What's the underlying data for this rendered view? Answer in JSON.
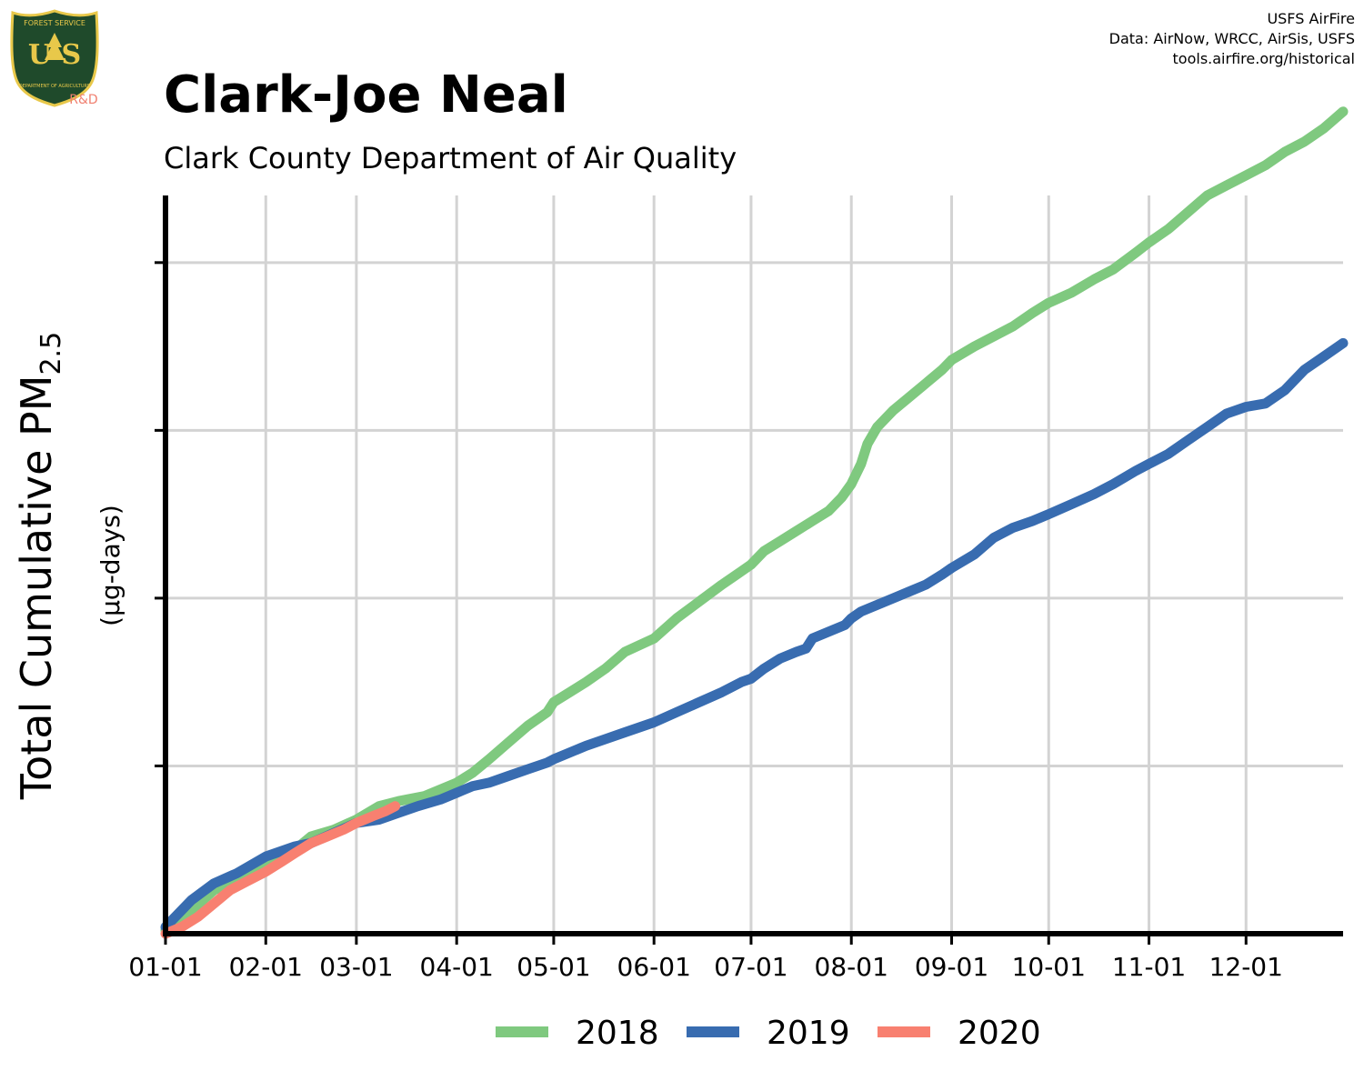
{
  "header": {
    "title": "Clark-Joe Neal",
    "subtitle": "Clark County Department of Air Quality",
    "credits": [
      "USFS AirFire",
      "Data: AirNow, WRCC, AirSis, USFS",
      "tools.airfire.org/historical"
    ]
  },
  "logo": {
    "text_top": "FOREST SERVICE",
    "text_letters": "U S",
    "text_bottom": "DEPARTMENT OF AGRICULTURE",
    "text_rd": "R&D",
    "colors": {
      "shield": "#1f4a2b",
      "gold": "#e8c84a",
      "rd": "#f08070"
    }
  },
  "chart_data": {
    "type": "line",
    "title": "Clark-Joe Neal",
    "subtitle": "Clark County Department of Air Quality",
    "ylabel_main": "Total Cumulative PM",
    "ylabel_sub": "2.5",
    "ylabel_units": "(µg-days)",
    "x_tick_labels": [
      "01-01",
      "02-01",
      "03-01",
      "04-01",
      "05-01",
      "06-01",
      "07-01",
      "08-01",
      "09-01",
      "10-01",
      "11-01",
      "12-01"
    ],
    "x_tick_days": [
      0,
      31,
      59,
      90,
      120,
      151,
      181,
      212,
      243,
      273,
      304,
      334
    ],
    "xlim": [
      0,
      364
    ],
    "ylim": [
      0,
      2200
    ],
    "y_gridlines": [
      500,
      1000,
      1500,
      2000
    ],
    "grid": true,
    "legend_position": "bottom",
    "series": [
      {
        "name": "2018",
        "color": "#7fc97f",
        "x": [
          0,
          8,
          15,
          22,
          31,
          40,
          45,
          52,
          59,
          66,
          72,
          80,
          85,
          90,
          95,
          100,
          106,
          112,
          118,
          120,
          125,
          130,
          136,
          142,
          151,
          158,
          165,
          172,
          178,
          181,
          185,
          190,
          195,
          200,
          205,
          209,
          212,
          215,
          217,
          220,
          225,
          230,
          235,
          240,
          243,
          250,
          256,
          262,
          268,
          273,
          280,
          287,
          293,
          300,
          304,
          310,
          316,
          322,
          328,
          334,
          340,
          346,
          352,
          358,
          364
        ],
        "values": [
          10,
          70,
          130,
          160,
          210,
          250,
          290,
          310,
          340,
          380,
          395,
          410,
          430,
          450,
          480,
          520,
          570,
          620,
          660,
          690,
          720,
          750,
          790,
          840,
          880,
          940,
          990,
          1040,
          1080,
          1100,
          1140,
          1170,
          1200,
          1230,
          1260,
          1300,
          1340,
          1400,
          1460,
          1510,
          1560,
          1600,
          1640,
          1680,
          1710,
          1750,
          1780,
          1810,
          1850,
          1880,
          1910,
          1950,
          1980,
          2030,
          2060,
          2100,
          2150,
          2200,
          2230,
          2260,
          2290,
          2330,
          2360,
          2400,
          2450
        ]
      },
      {
        "name": "2019",
        "color": "#386cb0",
        "x": [
          0,
          8,
          15,
          22,
          31,
          40,
          45,
          52,
          59,
          66,
          72,
          78,
          85,
          90,
          95,
          100,
          106,
          112,
          118,
          120,
          125,
          130,
          136,
          142,
          151,
          158,
          165,
          172,
          178,
          181,
          185,
          190,
          195,
          198,
          200,
          205,
          210,
          212,
          215,
          220,
          225,
          230,
          235,
          240,
          243,
          250,
          256,
          262,
          268,
          273,
          280,
          287,
          293,
          300,
          304,
          310,
          316,
          322,
          328,
          334,
          340,
          346,
          352,
          358,
          364
        ],
        "values": [
          20,
          100,
          150,
          180,
          230,
          260,
          270,
          300,
          330,
          340,
          360,
          380,
          400,
          420,
          440,
          450,
          470,
          490,
          510,
          520,
          540,
          560,
          580,
          600,
          630,
          660,
          690,
          720,
          750,
          760,
          790,
          820,
          840,
          850,
          880,
          900,
          920,
          940,
          960,
          980,
          1000,
          1020,
          1040,
          1070,
          1090,
          1130,
          1180,
          1210,
          1230,
          1250,
          1280,
          1310,
          1340,
          1380,
          1400,
          1430,
          1470,
          1510,
          1550,
          1570,
          1580,
          1620,
          1680,
          1720,
          1760
        ]
      },
      {
        "name": "2020",
        "color": "#f88070",
        "x": [
          0,
          5,
          10,
          15,
          20,
          25,
          31,
          36,
          40,
          45,
          50,
          55,
          59,
          64,
          68,
          71
        ],
        "values": [
          0,
          20,
          50,
          90,
          130,
          155,
          185,
          215,
          240,
          270,
          290,
          310,
          330,
          350,
          365,
          380
        ]
      }
    ]
  }
}
